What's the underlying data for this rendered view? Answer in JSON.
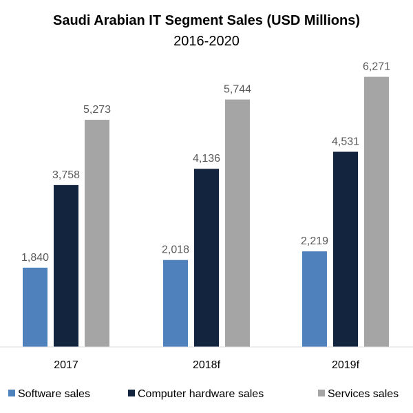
{
  "chart_data": {
    "type": "bar",
    "title": "Saudi Arabian IT Segment Sales (USD Millions)",
    "subtitle": "2016-2020",
    "categories": [
      "2017",
      "2018f",
      "2019f"
    ],
    "series": [
      {
        "name": "Software sales",
        "color": "#4f81bd",
        "values": [
          1840,
          2018,
          2219
        ],
        "labels": [
          "1,840",
          "2,018",
          "2,219"
        ]
      },
      {
        "name": "Computer hardware sales",
        "color": "#13243f",
        "values": [
          3758,
          4136,
          4531
        ],
        "labels": [
          "3,758",
          "4,136",
          "4,531"
        ]
      },
      {
        "name": "Services sales",
        "color": "#a5a5a5",
        "values": [
          5273,
          5744,
          6271
        ],
        "labels": [
          "5,273",
          "5,744",
          "6,271"
        ]
      }
    ],
    "xlabel": "",
    "ylabel": "",
    "ylim": [
      0,
      7000
    ],
    "grid": false,
    "legend_position": "bottom"
  }
}
